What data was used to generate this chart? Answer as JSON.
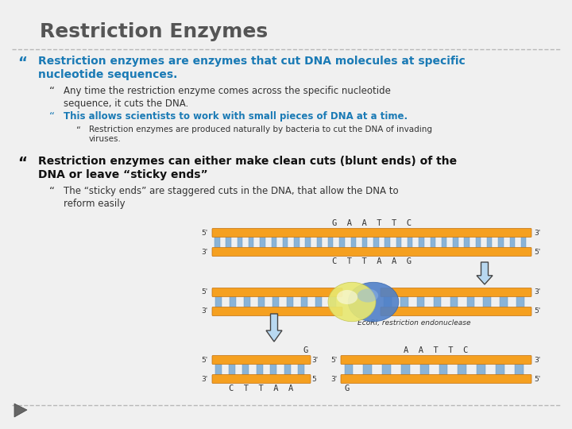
{
  "title": "Restriction Enzymes",
  "title_color": "#555555",
  "title_fontsize": 18,
  "bg_color": "#f0f0f0",
  "divider_color": "#aaaaaa",
  "bullet1_text": "Restriction enzymes are enzymes that cut DNA molecules at specific\nnucleotide sequences.",
  "bullet1_color": "#1a7ab5",
  "bullet1_fontsize": 10,
  "sub1a_text": "Any time the restriction enzyme comes across the specific nucleotide\nsequence, it cuts the DNA.",
  "sub1a_color": "#333333",
  "sub1a_fontsize": 8.5,
  "sub1b_text": "This allows scientists to work with small pieces of DNA at a time.",
  "sub1b_color": "#1a7ab5",
  "sub1b_fontsize": 8.5,
  "sub1b1_text": "Restriction enzymes are produced naturally by bacteria to cut the DNA of invading\nviruses.",
  "sub1b1_color": "#333333",
  "sub1b1_fontsize": 7.5,
  "bullet2_text": "Restriction enzymes can either make clean cuts (blunt ends) of the\nDNA or leave “sticky ends”",
  "bullet2_color": "#111111",
  "bullet2_fontsize": 10,
  "sub2a_text": "The “sticky ends” are staggered cuts in the DNA, that allow the DNA to\nreform easily",
  "sub2a_color": "#333333",
  "sub2a_fontsize": 8.5,
  "footer_divider_color": "#aaaaaa",
  "dna_orange": "#f5a020",
  "dna_stripe": "#8ab4d8",
  "dna_text_color": "#333333",
  "enzyme_yellow": "#e8e870",
  "enzyme_blue": "#5080c8",
  "arrow_fill": "#b8d8f0",
  "arrow_edge": "#444444"
}
